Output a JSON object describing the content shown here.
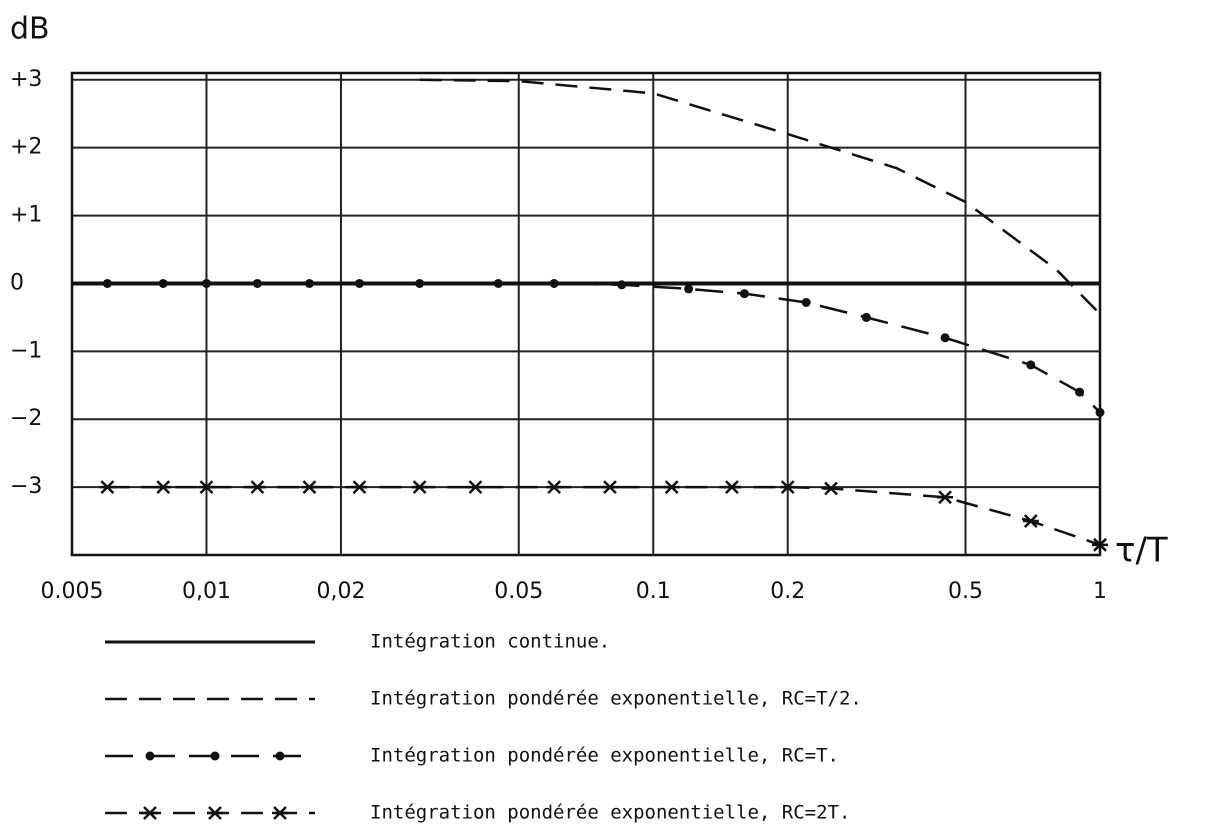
{
  "chart_data": {
    "type": "line",
    "y_label": "dB",
    "x_label": "τ/T",
    "x_scale": "log",
    "grid": true,
    "xlim": [
      0.005,
      1
    ],
    "ylim": [
      -4,
      3.1
    ],
    "xticks": [
      0.005,
      {
        "value": 0.01,
        "label": "0,01"
      },
      {
        "value": 0.02,
        "label": "0,02"
      },
      0.05,
      0.1,
      0.2,
      0.5,
      1
    ],
    "yticks": [
      {
        "value": 3,
        "label": "+3"
      },
      {
        "value": 2,
        "label": "+2"
      },
      {
        "value": 1,
        "label": "+1"
      },
      0,
      {
        "value": -1,
        "label": "−1"
      },
      {
        "value": -2,
        "label": "−2"
      },
      {
        "value": -3,
        "label": "−3"
      }
    ],
    "series": [
      {
        "name": "Intégration continue.",
        "color": "#111",
        "style": "solid",
        "marker": "none",
        "x": [
          0.005,
          1
        ],
        "values": [
          0,
          0
        ]
      },
      {
        "name": "Intégration pondérée exponentielle, RC=T/2.",
        "color": "#111",
        "style": "dashed",
        "marker": "none",
        "x": [
          0.03,
          0.05,
          0.1,
          0.2,
          0.35,
          0.5,
          0.8,
          1
        ],
        "values": [
          3,
          2.98,
          2.8,
          2.2,
          1.7,
          1.2,
          0.2,
          -0.45
        ]
      },
      {
        "name": "Intégration pondérée exponentielle, RC=T.",
        "color": "#111",
        "style": "dashdot",
        "marker": "dot",
        "x": [
          0.006,
          0.008,
          0.01,
          0.013,
          0.017,
          0.022,
          0.03,
          0.045,
          0.06,
          0.085,
          0.12,
          0.16,
          0.22,
          0.3,
          0.45,
          0.7,
          0.9,
          1
        ],
        "values": [
          0,
          0,
          0,
          0,
          0,
          0,
          0,
          0,
          0,
          -0.02,
          -0.08,
          -0.15,
          -0.28,
          -0.5,
          -0.8,
          -1.2,
          -1.6,
          -1.9
        ]
      },
      {
        "name": "Intégration pondérée exponentielle, RC=2T.",
        "color": "#111",
        "style": "dashed",
        "marker": "cross",
        "x": [
          0.006,
          0.008,
          0.01,
          0.013,
          0.017,
          0.022,
          0.03,
          0.04,
          0.06,
          0.08,
          0.11,
          0.15,
          0.2,
          0.25,
          0.45,
          0.7,
          1
        ],
        "values": [
          -3,
          -3,
          -3,
          -3,
          -3,
          -3,
          -3,
          -3,
          -3,
          -3,
          -3,
          -3,
          -3,
          -3.02,
          -3.15,
          -3.5,
          -3.85
        ]
      }
    ]
  }
}
